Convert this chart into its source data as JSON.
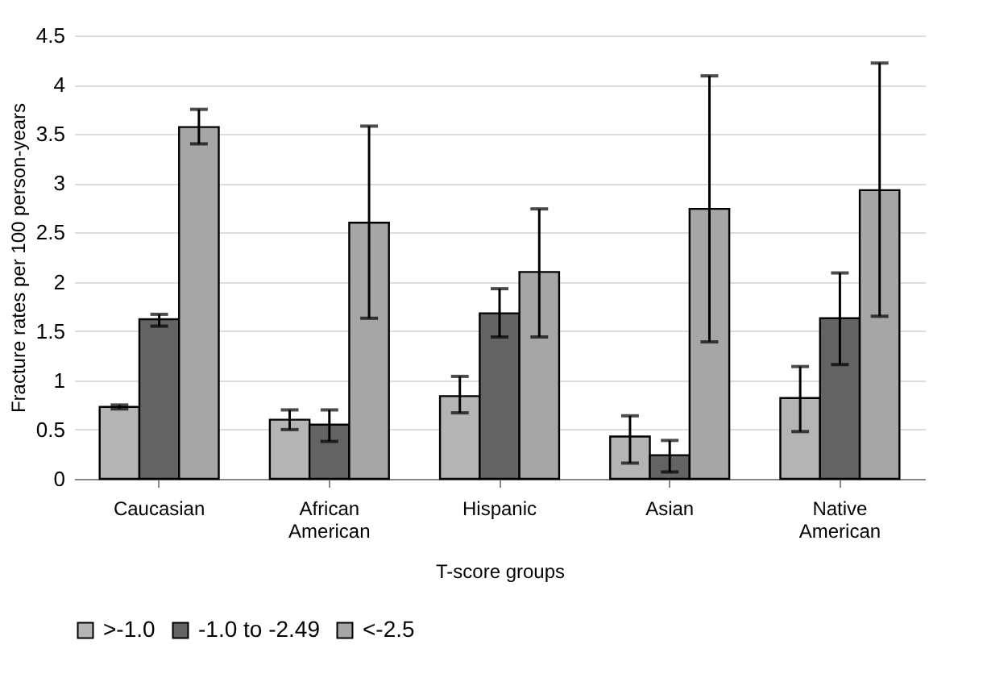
{
  "chart_data": {
    "type": "bar",
    "xlabel": "T-score groups",
    "ylabel": "Fracture rates per 100 person-years",
    "categories": [
      "Caucasian",
      "African American",
      "Hispanic",
      "Asian",
      "Native American"
    ],
    "series": [
      {
        "name": ">-1.0",
        "color": "#b4b4b4",
        "values": [
          0.73,
          0.6,
          0.84,
          0.43,
          0.82
        ],
        "errors": [
          [
            0.71,
            0.75
          ],
          [
            0.5,
            0.7
          ],
          [
            0.67,
            1.04
          ],
          [
            0.16,
            0.64
          ],
          [
            0.48,
            1.14
          ]
        ]
      },
      {
        "name": "-1.0 to -2.49",
        "color": "#636363",
        "values": [
          1.62,
          0.55,
          1.68,
          0.24,
          1.63
        ],
        "errors": [
          [
            1.55,
            1.67
          ],
          [
            0.38,
            0.7
          ],
          [
            1.44,
            1.93
          ],
          [
            0.07,
            0.39
          ],
          [
            1.16,
            2.09
          ]
        ]
      },
      {
        "name": "<-2.5",
        "color": "#a6a6a6",
        "values": [
          3.57,
          2.6,
          2.1,
          2.74,
          2.93
        ],
        "errors": [
          [
            3.4,
            3.75
          ],
          [
            1.63,
            3.58
          ],
          [
            1.44,
            2.74
          ],
          [
            1.39,
            4.09
          ],
          [
            1.65,
            4.22
          ]
        ]
      }
    ],
    "ylim": [
      0,
      4.5
    ],
    "yticks": [
      0,
      0.5,
      1,
      1.5,
      2,
      2.5,
      3,
      3.5,
      4,
      4.5
    ],
    "grid": "y",
    "legend": "bottom"
  }
}
